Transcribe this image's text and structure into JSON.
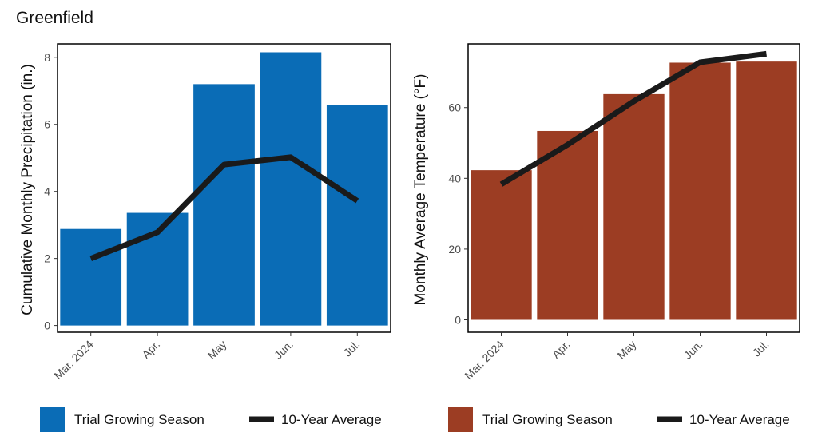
{
  "figure": {
    "title": "Greenfield",
    "colors": {
      "precip": "#0a6cb6",
      "temp": "#9c3d23",
      "line": "#1a1a1a",
      "frame": "#000000"
    }
  },
  "chart_data": [
    {
      "type": "bar",
      "id": "precip",
      "categories": [
        "Mar. 2024",
        "Apr.",
        "May",
        "Jun.",
        "Jul."
      ],
      "series": [
        {
          "name": "Trial Growing Season",
          "kind": "bar",
          "values": [
            2.88,
            3.36,
            7.2,
            8.15,
            6.57
          ]
        },
        {
          "name": "10-Year Average",
          "kind": "line",
          "values": [
            2.0,
            2.78,
            4.8,
            5.02,
            3.72
          ]
        }
      ],
      "ylabel": "Cumulative Monthly Precipitation (in.)",
      "xlabel": "",
      "ylim": [
        -0.2,
        8.4
      ],
      "yticks": [
        0,
        2,
        4,
        6,
        8
      ],
      "grid": false,
      "legend": "bottom"
    },
    {
      "type": "bar",
      "id": "temp",
      "categories": [
        "Mar. 2024",
        "Apr.",
        "May",
        "Jun.",
        "Jul."
      ],
      "series": [
        {
          "name": "Trial Growing Season",
          "kind": "bar",
          "values": [
            42.3,
            53.4,
            63.8,
            72.7,
            73.0
          ]
        },
        {
          "name": "10-Year Average",
          "kind": "line",
          "values": [
            38.3,
            49.5,
            61.8,
            72.8,
            75.2
          ]
        }
      ],
      "ylabel": "Monthly Average Temperature  (°F)",
      "xlabel": "",
      "ylim": [
        -3.5,
        78
      ],
      "yticks": [
        0,
        20,
        40,
        60
      ],
      "grid": false,
      "legend": "bottom"
    }
  ]
}
